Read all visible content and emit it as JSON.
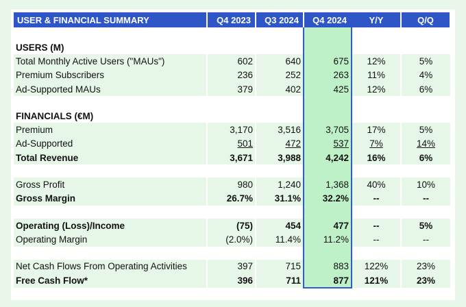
{
  "header": {
    "title": "USER & FINANCIAL SUMMARY",
    "columns": [
      "Q4 2023",
      "Q3 2024",
      "Q4 2024",
      "Y/Y",
      "Q/Q"
    ]
  },
  "sections": {
    "users": {
      "title": "USERS (M)",
      "rows": [
        {
          "label": "Total Monthly Active Users (\"MAUs\")",
          "values": [
            "602",
            "640",
            "675",
            "12%",
            "5%"
          ]
        },
        {
          "label": "Premium Subscribers",
          "values": [
            "236",
            "252",
            "263",
            "11%",
            "4%"
          ]
        },
        {
          "label": "Ad-Supported MAUs",
          "values": [
            "379",
            "402",
            "425",
            "12%",
            "6%"
          ]
        }
      ]
    },
    "financials": {
      "title": "FINANCIALS (€M)",
      "rows": [
        {
          "label": "Premium",
          "values": [
            "3,170",
            "3,516",
            "3,705",
            "17%",
            "5%"
          ]
        },
        {
          "label": "Ad-Supported",
          "values": [
            "501",
            "472",
            "537",
            "7%",
            "14%"
          ]
        },
        {
          "label": "Total Revenue",
          "values": [
            "3,671",
            "3,988",
            "4,242",
            "16%",
            "6%"
          ]
        }
      ]
    },
    "margins": {
      "rows": [
        {
          "label": "Gross Profit",
          "values": [
            "980",
            "1,240",
            "1,368",
            "40%",
            "10%"
          ]
        },
        {
          "label": "Gross Margin",
          "values": [
            "26.7%",
            "31.1%",
            "32.2%",
            "--",
            "--"
          ]
        }
      ]
    },
    "operating": {
      "rows": [
        {
          "label": "Operating (Loss)/Income",
          "values": [
            "(75)",
            "454",
            "477",
            "--",
            "5%"
          ]
        },
        {
          "label": "Operating Margin",
          "values": [
            "(2.0%)",
            "11.4%",
            "11.2%",
            "--",
            "--"
          ]
        }
      ]
    },
    "cash": {
      "rows": [
        {
          "label": "Net Cash Flows From Operating Activities",
          "values": [
            "397",
            "715",
            "883",
            "122%",
            "23%"
          ]
        },
        {
          "label": "Free Cash Flow*",
          "values": [
            "396",
            "711",
            "877",
            "121%",
            "23%"
          ]
        }
      ]
    }
  },
  "colors": {
    "header_blue": "#2e56c6",
    "stripe_green": "#e6f6e7",
    "highlight_green": "#bff1c8",
    "highlight_border": "#2f5dc4"
  }
}
